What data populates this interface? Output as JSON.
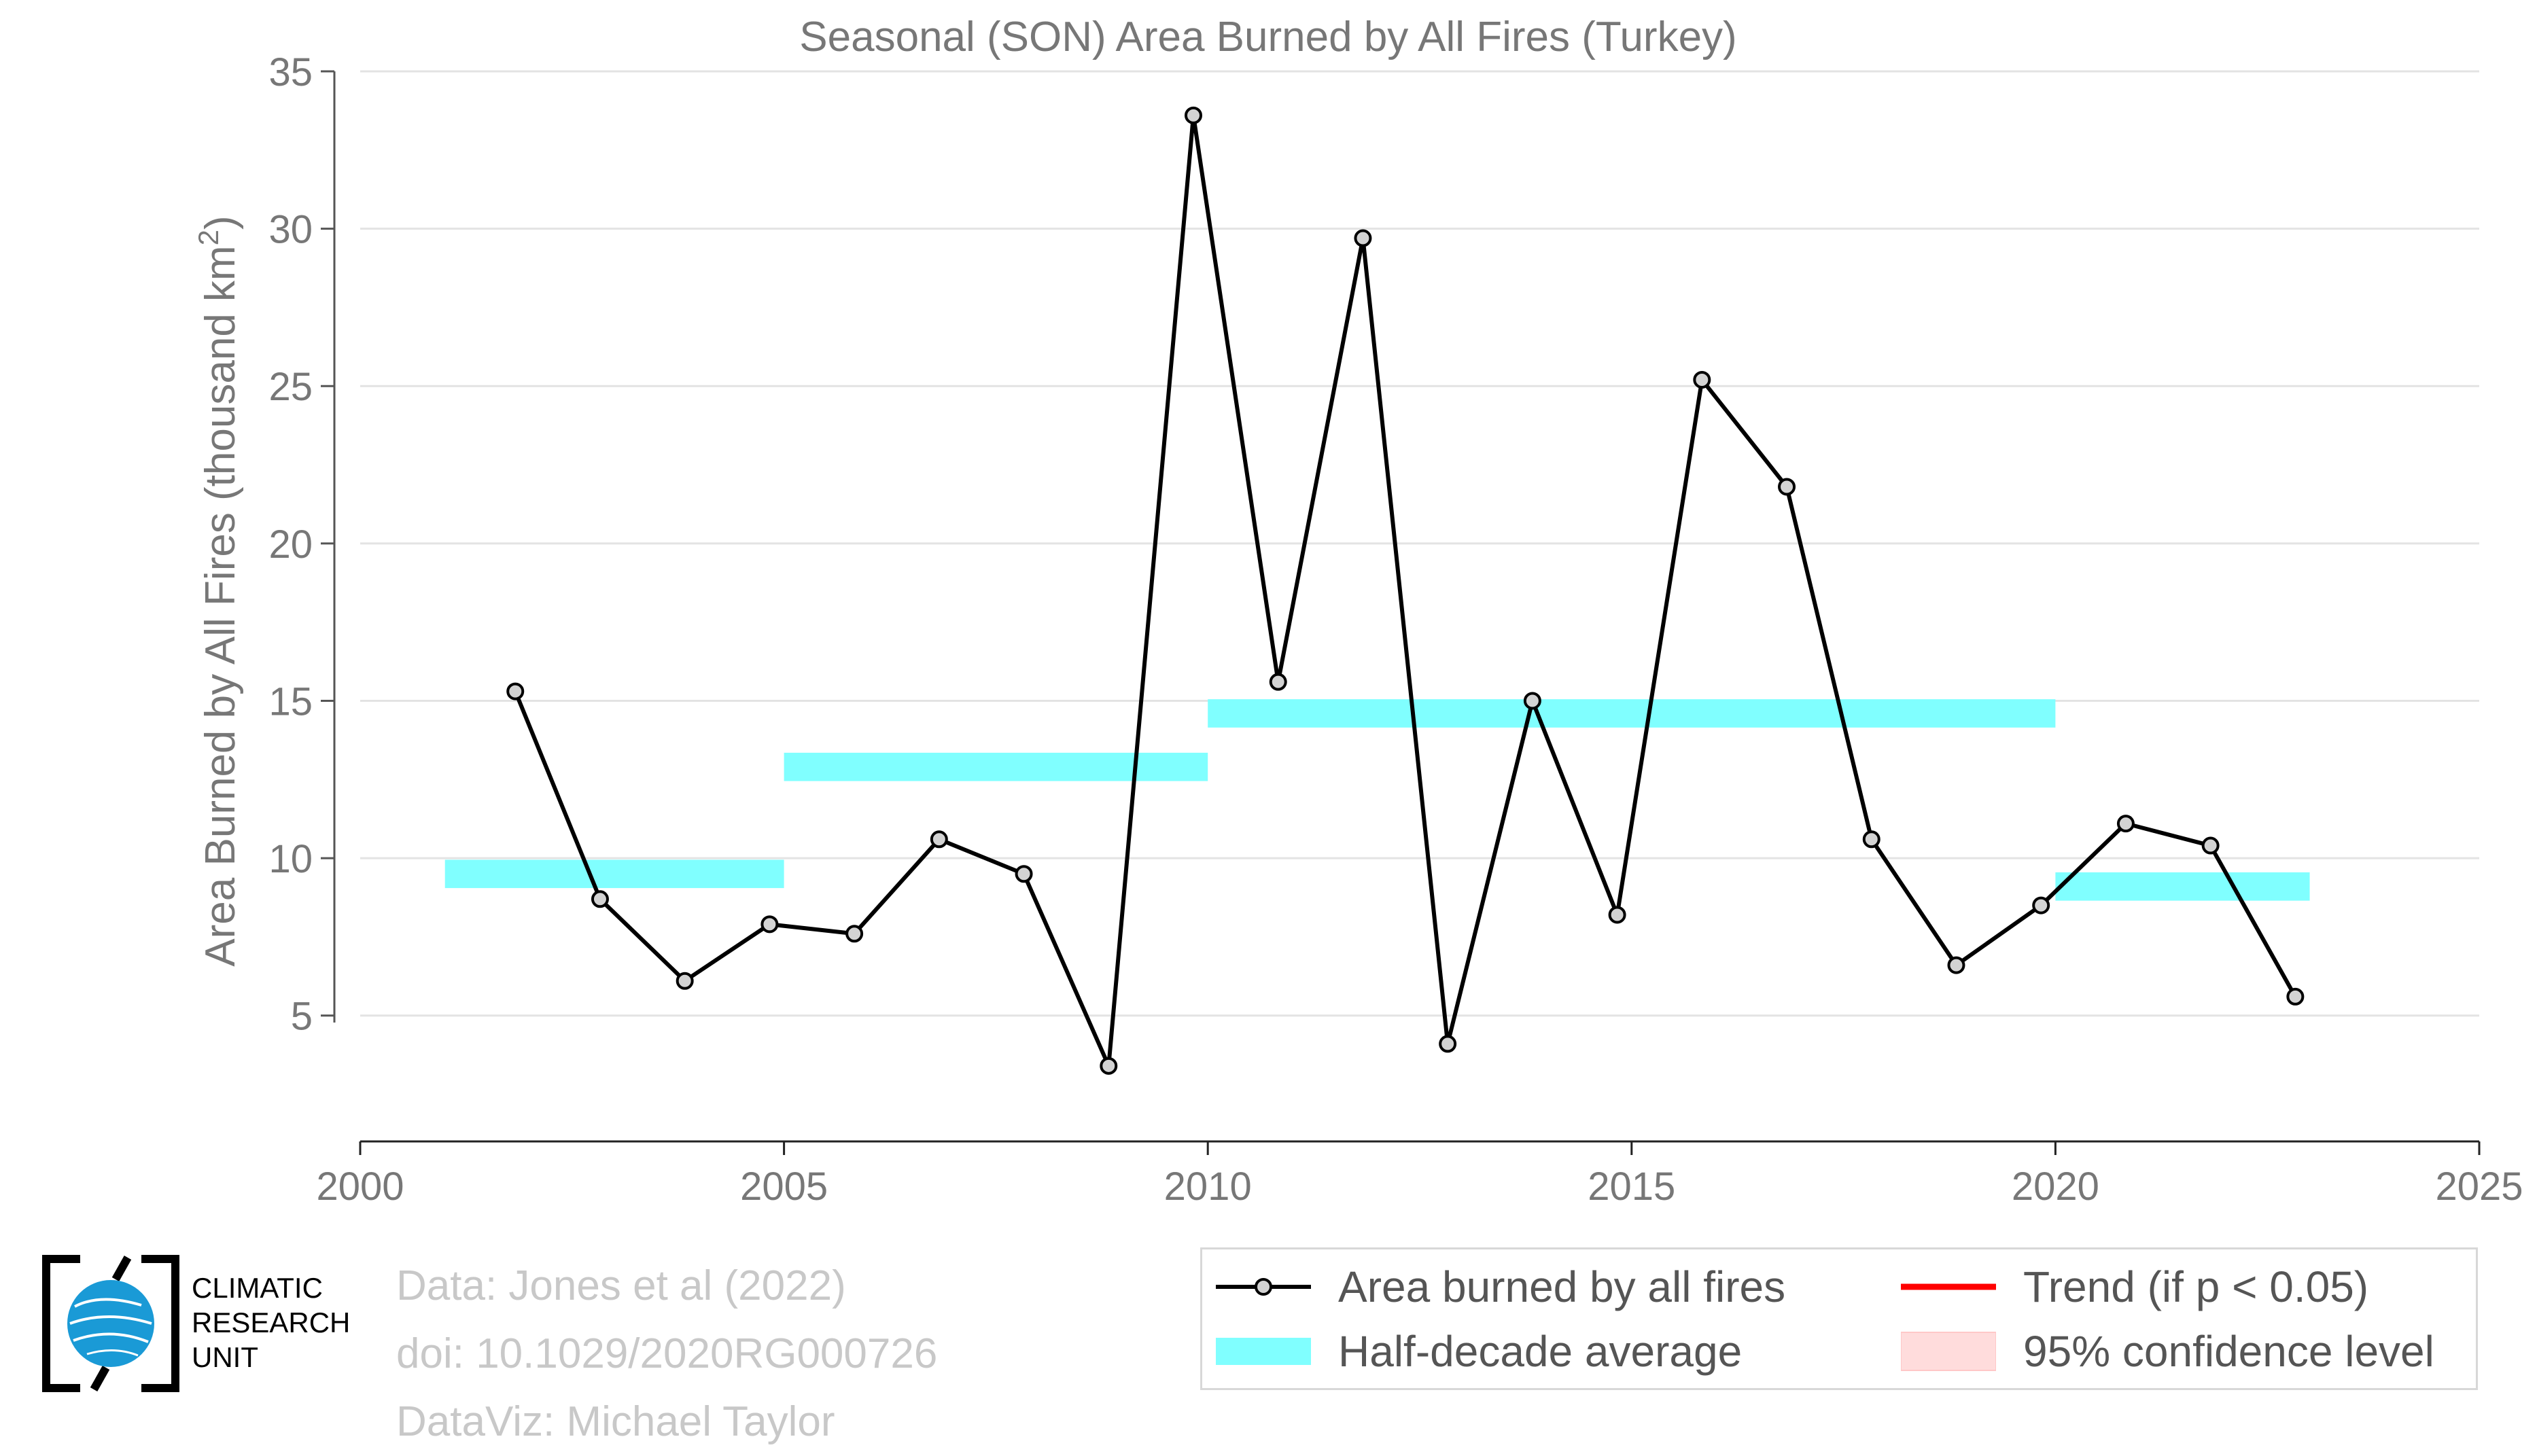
{
  "chart_data": {
    "type": "line",
    "title": "Seasonal (SON) Area Burned by All Fires (Turkey)",
    "ylabel": "Area Burned by All Fires (thousand km",
    "ylabel_sup": "2",
    "ylabel_close": ")",
    "xlim": [
      2000,
      2025
    ],
    "ylim": [
      1,
      35
    ],
    "x_ticks": [
      2000,
      2005,
      2010,
      2015,
      2020,
      2025
    ],
    "x_tick_labels": [
      "2000",
      "2005",
      "2010",
      "2015",
      "2020",
      "2025"
    ],
    "y_ticks": [
      5,
      10,
      15,
      20,
      25,
      30,
      35
    ],
    "y_tick_labels": [
      "5",
      "10",
      "15",
      "20",
      "25",
      "30",
      "35"
    ],
    "grid": "horizontal",
    "series": [
      {
        "name": "Area burned by all fires",
        "type": "line",
        "color": "#000000",
        "marker_fill": "#d3d3d3",
        "x": [
          2001.83,
          2002.83,
          2003.83,
          2004.83,
          2005.83,
          2006.83,
          2007.83,
          2008.83,
          2009.83,
          2010.83,
          2011.83,
          2012.83,
          2013.83,
          2014.83,
          2015.83,
          2016.83,
          2017.83,
          2018.83,
          2019.83,
          2020.83,
          2021.83,
          2022.83
        ],
        "y": [
          15.3,
          8.7,
          6.1,
          7.9,
          7.6,
          10.6,
          9.5,
          3.4,
          33.6,
          15.6,
          29.7,
          4.1,
          15.0,
          8.2,
          25.2,
          21.8,
          10.6,
          6.6,
          8.5,
          11.1,
          10.4,
          5.6
        ]
      },
      {
        "name": "Half-decade average",
        "type": "segments",
        "color": "#80ffff",
        "segments": [
          {
            "x0": 2001,
            "x1": 2005,
            "y": 9.5
          },
          {
            "x0": 2005,
            "x1": 2010,
            "y": 12.9
          },
          {
            "x0": 2010,
            "x1": 2020,
            "y": 14.6
          },
          {
            "x0": 2020,
            "x1": 2023,
            "y": 9.1
          }
        ]
      }
    ],
    "legend": {
      "placement": "bottom-right",
      "items": [
        {
          "label": "Area burned by all fires",
          "key": "line-marker",
          "color": "#000000"
        },
        {
          "label": "Trend (if p < 0.05)",
          "key": "line",
          "color": "#ff0000"
        },
        {
          "label": "Half-decade average",
          "key": "band",
          "color": "#80ffff"
        },
        {
          "label": "95% confidence level",
          "key": "band",
          "color": "#ffdcdc"
        }
      ]
    }
  },
  "credits": {
    "line1": "Data: Jones et al (2022)",
    "line2": "doi: 10.1029/2020RG000726",
    "line3": "DataViz: Michael Taylor"
  },
  "logo": {
    "line1": "CLIMATIC",
    "line2": "RESEARCH",
    "line3": "UNIT",
    "color": "#1a9ad6"
  }
}
